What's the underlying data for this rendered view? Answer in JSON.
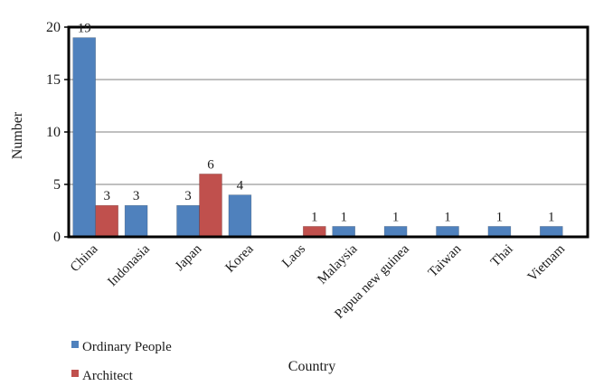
{
  "chart_data": {
    "type": "bar",
    "title": "",
    "xlabel": "Country",
    "ylabel": "Number",
    "ylim": [
      0,
      20
    ],
    "yticks": [
      0,
      5,
      10,
      15,
      20
    ],
    "grid": true,
    "legend_position": "bottom-left",
    "categories": [
      "China",
      "Indonasia",
      "Japan",
      "Korea",
      "Laos",
      "Malaysia",
      "Papua new guinea",
      "Taiwan",
      "Thai",
      "Vietnam"
    ],
    "series": [
      {
        "name": "Ordinary People",
        "color": "#4f81bd",
        "values": [
          19,
          3,
          3,
          4,
          0,
          1,
          1,
          1,
          1,
          1
        ],
        "labels": [
          "19",
          "3",
          "3",
          "4",
          "",
          "1",
          "1",
          "1",
          "1",
          "1"
        ]
      },
      {
        "name": "Architect",
        "color": "#c0504d",
        "values": [
          3,
          0,
          6,
          0,
          1,
          0,
          0,
          0,
          0,
          0
        ],
        "labels": [
          "3",
          "",
          "6",
          "",
          "1",
          "",
          "",
          "",
          "",
          ""
        ]
      }
    ]
  }
}
